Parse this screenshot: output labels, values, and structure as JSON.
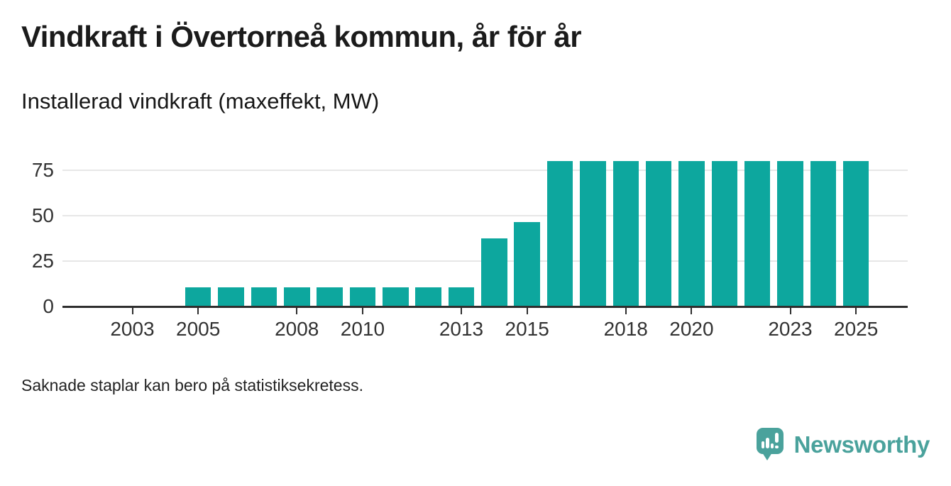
{
  "header": {
    "title": "Vindkraft i Övertorneå kommun, år för år",
    "subtitle": "Installerad vindkraft (maxeffekt, MW)"
  },
  "footer": {
    "note": "Saknade staplar kan bero på statistiksekretess."
  },
  "branding": {
    "logo_text": "Newsworthy",
    "logo_icon": "speech-bubble-with-bar-chart-and-exclamation",
    "logo_color": "#4aa29c"
  },
  "colors": {
    "bar": "#0da79e",
    "axis": "#2e2e2e",
    "gridline": "#e7e7e7",
    "tick_label": "#333333",
    "title_text": "#1b1b1b",
    "background": "#ffffff"
  },
  "chart_data": {
    "type": "bar",
    "title": "Vindkraft i Övertorneå kommun, år för år",
    "subtitle": "Installerad vindkraft (maxeffekt, MW)",
    "unit": "MW",
    "x": [
      2003,
      2004,
      2005,
      2006,
      2007,
      2008,
      2009,
      2010,
      2011,
      2012,
      2013,
      2014,
      2015,
      2016,
      2017,
      2018,
      2019,
      2020,
      2021,
      2022,
      2023,
      2024,
      2025
    ],
    "values": [
      null,
      null,
      10.5,
      10.5,
      10.5,
      10.5,
      10.5,
      10.5,
      10.5,
      10.5,
      10.5,
      37.5,
      46.5,
      80,
      80,
      80,
      80,
      80,
      80,
      80,
      80,
      80,
      80
    ],
    "x_ticks": [
      2003,
      2005,
      2008,
      2010,
      2013,
      2015,
      2018,
      2020,
      2023,
      2025
    ],
    "y_ticks": [
      0,
      25,
      50,
      75
    ],
    "ylim": [
      0,
      86.5
    ],
    "grid": "horizontal-only",
    "legend": "none",
    "missing_data_note": "Saknade staplar kan bero på statistiksekretess."
  }
}
